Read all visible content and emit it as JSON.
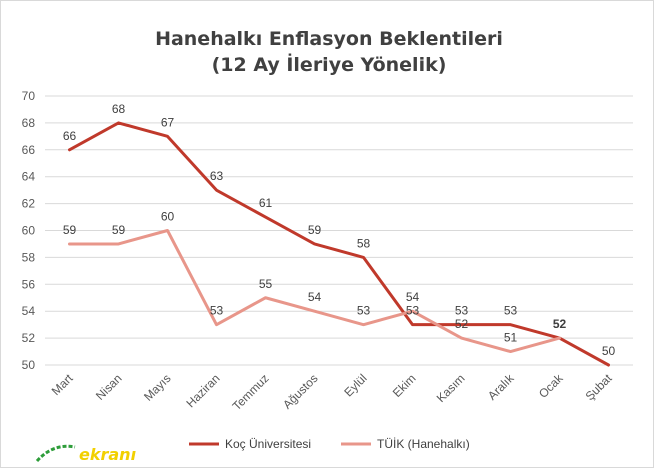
{
  "chart_data": {
    "type": "line",
    "title": "Hanehalkı Enflasyon Beklentileri",
    "subtitle": "(12 Ay İleriye Yönelik)",
    "categories": [
      "Mart",
      "Nisan",
      "Mayıs",
      "Haziran",
      "Temmuz",
      "Ağustos",
      "Eylül",
      "Ekim",
      "Kasım",
      "Aralık",
      "Ocak",
      "Şubat"
    ],
    "series": [
      {
        "name": "Koç Üniversitesi",
        "color": "#c0392b",
        "values": [
          66,
          68,
          67,
          63,
          61,
          59,
          58,
          53,
          53,
          53,
          52,
          50
        ]
      },
      {
        "name": "TÜİK (Hanehalkı)",
        "color": "#e8968a",
        "values": [
          59,
          59,
          60,
          53,
          55,
          54,
          53,
          54,
          52,
          51,
          52,
          null
        ]
      }
    ],
    "ylim": [
      50,
      70
    ],
    "yticks": [
      50,
      52,
      54,
      56,
      58,
      60,
      62,
      64,
      66,
      68,
      70
    ],
    "grid": true,
    "legend_position": "bottom",
    "xlabel": "",
    "ylabel": ""
  },
  "logo": {
    "text": "ekranı"
  }
}
